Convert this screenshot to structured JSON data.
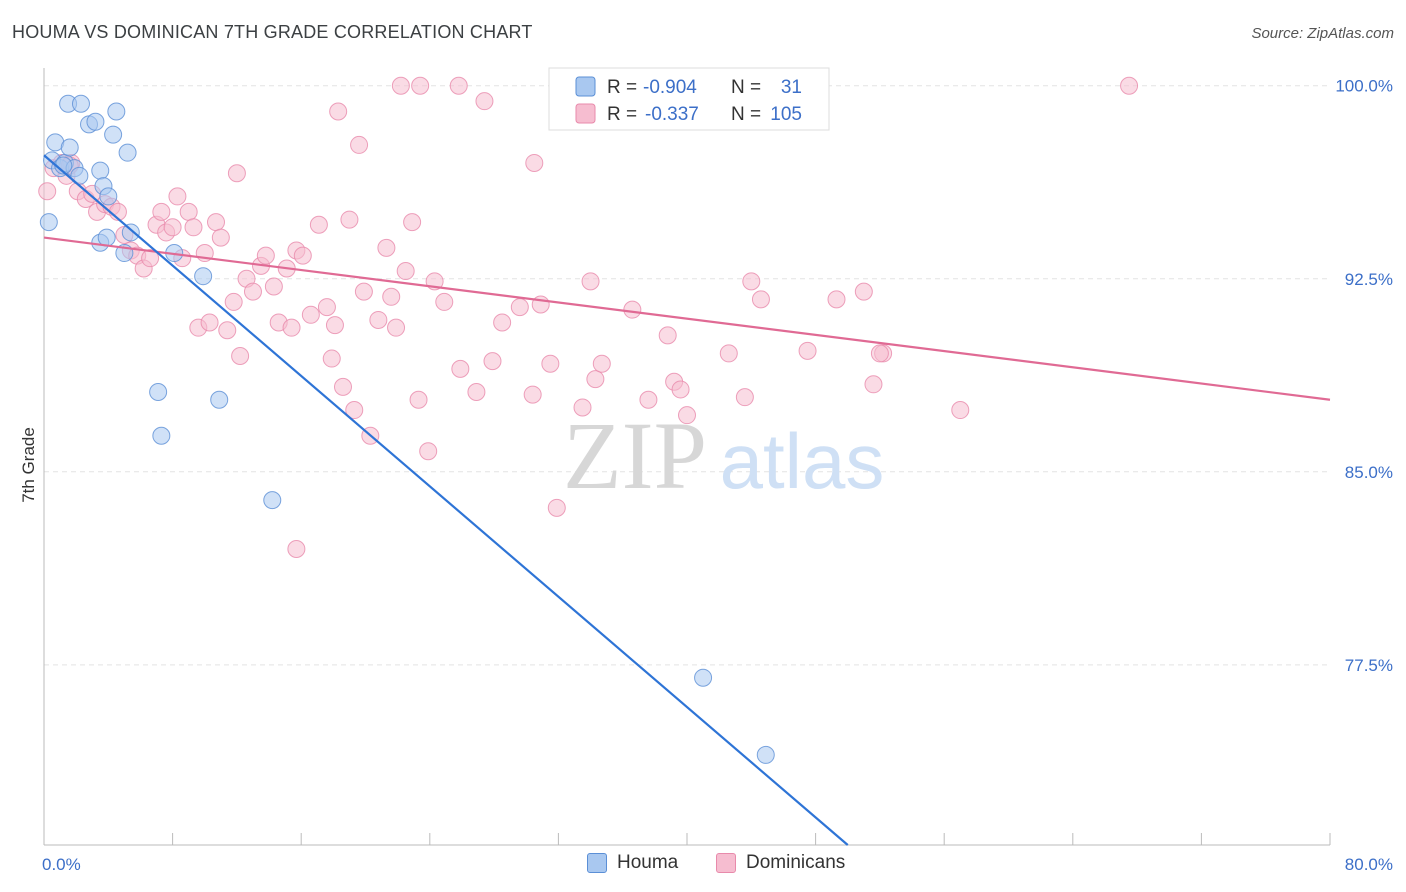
{
  "header": {
    "title": "HOUMA VS DOMINICAN 7TH GRADE CORRELATION CHART",
    "source": "Source: ZipAtlas.com"
  },
  "watermark": {
    "part1": "ZIP",
    "part2": "atlas"
  },
  "colors": {
    "houma_fill": "#a9c8f0",
    "houma_stroke": "#5b8fd6",
    "houma_line": "#2e74d6",
    "dominican_fill": "#f6bdd0",
    "dominican_stroke": "#e88aab",
    "dominican_line": "#e06a94",
    "tick_text": "#3c6fc8",
    "grid": "#e3e3e3"
  },
  "legend_top": {
    "rows": [
      {
        "r_label": "R =",
        "r_value": "-0.904",
        "n_label": "N =",
        "n_value": "31"
      },
      {
        "r_label": "R =",
        "r_value": "-0.337",
        "n_label": "N =",
        "n_value": "105"
      }
    ]
  },
  "legend_bottom": {
    "items": [
      "Houma",
      "Dominicans"
    ]
  },
  "chart_data": {
    "type": "scatter",
    "title": "HOUMA VS DOMINICAN 7TH GRADE CORRELATION CHART",
    "xlabel": "",
    "ylabel": "7th Grade",
    "xlim": [
      0,
      80
    ],
    "ylim": [
      70.5,
      101
    ],
    "x_tick_labels": [
      "0.0%",
      "80.0%"
    ],
    "y_ticks": [
      77.5,
      85.0,
      92.5,
      100.0
    ],
    "y_tick_labels": [
      "77.5%",
      "85.0%",
      "92.5%",
      "100.0%"
    ],
    "grid": true,
    "legend_position": "top-center",
    "series": [
      {
        "name": "Houma",
        "r": -0.904,
        "n": 31,
        "trendline": {
          "x": [
            0.0,
            50.0
          ],
          "y": [
            97.3,
            70.5
          ]
        },
        "points": [
          [
            0.3,
            94.7
          ],
          [
            0.5,
            97.1
          ],
          [
            0.7,
            97.8
          ],
          [
            1.0,
            96.8
          ],
          [
            1.3,
            97.0
          ],
          [
            1.6,
            97.6
          ],
          [
            1.9,
            96.8
          ],
          [
            2.2,
            96.5
          ],
          [
            1.5,
            99.3
          ],
          [
            2.3,
            99.3
          ],
          [
            2.8,
            98.5
          ],
          [
            3.2,
            98.6
          ],
          [
            3.5,
            96.7
          ],
          [
            3.7,
            96.1
          ],
          [
            4.0,
            95.7
          ],
          [
            4.3,
            98.1
          ],
          [
            4.5,
            99.0
          ],
          [
            5.2,
            97.4
          ],
          [
            5.0,
            93.5
          ],
          [
            5.4,
            94.3
          ],
          [
            3.5,
            93.9
          ],
          [
            3.9,
            94.1
          ],
          [
            8.1,
            93.5
          ],
          [
            9.9,
            92.6
          ],
          [
            7.1,
            88.1
          ],
          [
            7.3,
            86.4
          ],
          [
            10.9,
            87.8
          ],
          [
            14.2,
            83.9
          ],
          [
            41.0,
            77.0
          ],
          [
            44.9,
            74.0
          ],
          [
            1.2,
            96.9
          ]
        ]
      },
      {
        "name": "Dominicans",
        "r": -0.337,
        "n": 105,
        "trendline": {
          "x": [
            0.0,
            80.0
          ],
          "y": [
            94.1,
            87.8
          ]
        },
        "points": [
          [
            0.2,
            95.9
          ],
          [
            0.6,
            96.8
          ],
          [
            1.1,
            97.0
          ],
          [
            1.4,
            96.5
          ],
          [
            1.7,
            97.0
          ],
          [
            2.1,
            95.9
          ],
          [
            2.6,
            95.6
          ],
          [
            3.0,
            95.8
          ],
          [
            3.3,
            95.1
          ],
          [
            3.8,
            95.4
          ],
          [
            4.2,
            95.3
          ],
          [
            4.6,
            95.1
          ],
          [
            5.0,
            94.2
          ],
          [
            5.4,
            93.6
          ],
          [
            5.8,
            93.4
          ],
          [
            6.2,
            92.9
          ],
          [
            6.6,
            93.3
          ],
          [
            7.0,
            94.6
          ],
          [
            7.3,
            95.1
          ],
          [
            7.6,
            94.3
          ],
          [
            8.0,
            94.5
          ],
          [
            8.3,
            95.7
          ],
          [
            8.6,
            93.3
          ],
          [
            9.0,
            95.1
          ],
          [
            9.3,
            94.5
          ],
          [
            9.6,
            90.6
          ],
          [
            10.0,
            93.5
          ],
          [
            10.3,
            90.8
          ],
          [
            10.7,
            94.7
          ],
          [
            11.0,
            94.1
          ],
          [
            11.4,
            90.5
          ],
          [
            11.8,
            91.6
          ],
          [
            12.2,
            89.5
          ],
          [
            12.6,
            92.5
          ],
          [
            13.0,
            92.0
          ],
          [
            13.5,
            93.0
          ],
          [
            13.8,
            93.4
          ],
          [
            14.3,
            92.2
          ],
          [
            14.6,
            90.8
          ],
          [
            15.1,
            92.9
          ],
          [
            15.4,
            90.6
          ],
          [
            15.7,
            93.6
          ],
          [
            16.1,
            93.4
          ],
          [
            16.6,
            91.1
          ],
          [
            17.1,
            94.6
          ],
          [
            17.6,
            91.4
          ],
          [
            17.9,
            89.4
          ],
          [
            18.1,
            90.7
          ],
          [
            18.6,
            88.3
          ],
          [
            19.0,
            94.8
          ],
          [
            19.3,
            87.4
          ],
          [
            19.6,
            97.7
          ],
          [
            19.9,
            92.0
          ],
          [
            20.3,
            86.4
          ],
          [
            20.8,
            90.9
          ],
          [
            21.3,
            93.7
          ],
          [
            21.6,
            91.8
          ],
          [
            21.9,
            90.6
          ],
          [
            22.5,
            92.8
          ],
          [
            22.9,
            94.7
          ],
          [
            23.3,
            87.8
          ],
          [
            23.9,
            85.8
          ],
          [
            24.3,
            92.4
          ],
          [
            24.9,
            91.6
          ],
          [
            25.9,
            89.0
          ],
          [
            26.9,
            88.1
          ],
          [
            27.9,
            89.3
          ],
          [
            28.5,
            90.8
          ],
          [
            29.6,
            91.4
          ],
          [
            30.4,
            88.0
          ],
          [
            30.9,
            91.5
          ],
          [
            31.5,
            89.2
          ],
          [
            31.9,
            83.6
          ],
          [
            32.5,
            100.0
          ],
          [
            33.5,
            87.5
          ],
          [
            34.0,
            92.4
          ],
          [
            34.3,
            88.6
          ],
          [
            34.7,
            89.2
          ],
          [
            36.6,
            91.3
          ],
          [
            37.6,
            87.8
          ],
          [
            38.8,
            90.3
          ],
          [
            39.2,
            88.5
          ],
          [
            39.6,
            88.2
          ],
          [
            40.0,
            87.2
          ],
          [
            42.6,
            89.6
          ],
          [
            43.6,
            87.9
          ],
          [
            44.0,
            92.4
          ],
          [
            44.6,
            91.7
          ],
          [
            47.5,
            89.7
          ],
          [
            49.3,
            91.7
          ],
          [
            51.0,
            92.0
          ],
          [
            51.6,
            88.4
          ],
          [
            52.2,
            89.6
          ],
          [
            52.0,
            89.6
          ],
          [
            57.0,
            87.4
          ],
          [
            12.0,
            96.6
          ],
          [
            18.3,
            99.0
          ],
          [
            22.2,
            100.0
          ],
          [
            23.4,
            100.0
          ],
          [
            25.8,
            100.0
          ],
          [
            27.4,
            99.4
          ],
          [
            30.5,
            97.0
          ],
          [
            67.5,
            100.0
          ],
          [
            15.7,
            82.0
          ],
          [
            1.6,
            96.9
          ]
        ]
      }
    ]
  }
}
